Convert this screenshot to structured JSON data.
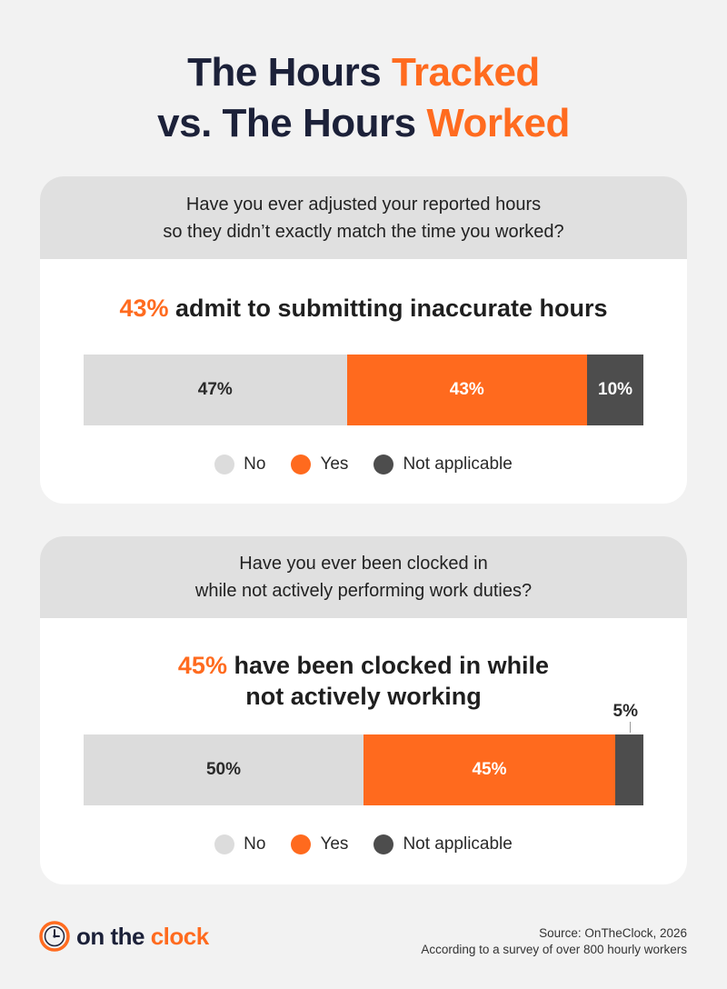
{
  "title": {
    "line1_prefix": "The Hours ",
    "line1_accent": "Tracked",
    "line2_prefix": "vs. The Hours ",
    "line2_accent": "Worked"
  },
  "chart_data": [
    {
      "type": "bar",
      "orientation": "stacked-horizontal",
      "title": "Have you ever adjusted your reported hours so they didn’t exactly match the time you worked?",
      "question_lines": [
        "Have you ever adjusted your reported hours",
        "so they didn’t exactly match the time you worked?"
      ],
      "headline": {
        "accent": "43%",
        "line1": " admit to submitting inaccurate hours",
        "line2": ""
      },
      "categories": [
        "No",
        "Yes",
        "Not applicable"
      ],
      "values": [
        47,
        43,
        10
      ],
      "labels": [
        "47%",
        "43%",
        "10%"
      ],
      "colors": [
        "#dcdcdc",
        "#ff6a1e",
        "#4d4d4d"
      ],
      "legend_position": "bottom"
    },
    {
      "type": "bar",
      "orientation": "stacked-horizontal",
      "title": "Have you ever been clocked in while not actively performing work duties?",
      "question_lines": [
        "Have you ever been clocked in",
        "while not actively performing work duties?"
      ],
      "headline": {
        "accent": "45%",
        "line1": " have been clocked in while",
        "line2": "not actively working"
      },
      "categories": [
        "No",
        "Yes",
        "Not applicable"
      ],
      "values": [
        50,
        45,
        5
      ],
      "labels": [
        "50%",
        "45%",
        "5%"
      ],
      "colors": [
        "#dcdcdc",
        "#ff6a1e",
        "#4d4d4d"
      ],
      "legend_position": "bottom"
    }
  ],
  "logo": {
    "prefix": "on the ",
    "accent": "clock",
    "icon": "clock-icon"
  },
  "source": {
    "line1": "Source: OnTheClock, 2026",
    "line2": "According to a survey of over 800 hourly workers"
  }
}
